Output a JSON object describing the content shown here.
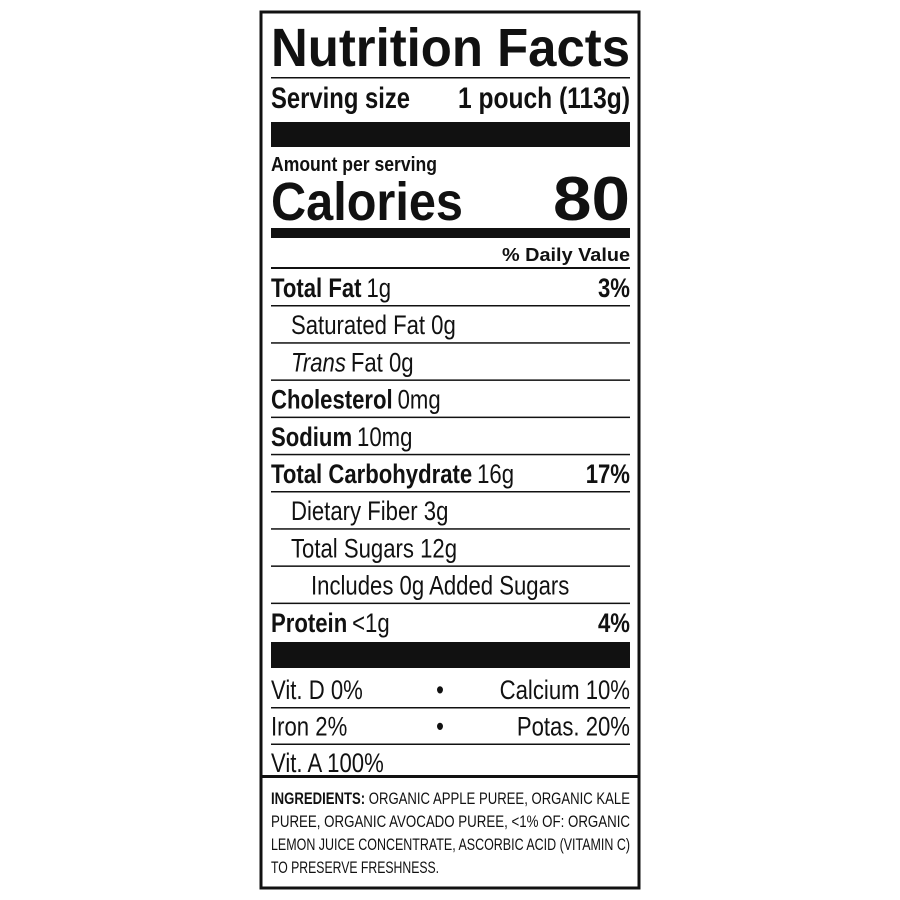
{
  "title": "Nutrition Facts",
  "serving": {
    "label": "Serving size",
    "value": "1 pouch (113g)"
  },
  "amount_per_serving": "Amount per serving",
  "calories": {
    "label": "Calories",
    "value": 80
  },
  "daily_value_header": "% Daily Value",
  "nutrients": [
    {
      "name": "Total Fat",
      "amount": "1g",
      "dv": "3%"
    },
    {
      "name": "Saturated Fat 0g"
    },
    {
      "name_italic": "Trans",
      "name": "Fat 0g"
    },
    {
      "name": "Cholesterol",
      "amount": "0mg"
    },
    {
      "name": "Sodium",
      "amount": "10mg"
    },
    {
      "name": "Total Carbohydrate",
      "amount": "16g",
      "dv": "17%"
    },
    {
      "name": "Dietary Fiber 3g"
    },
    {
      "name": "Total Sugars 12g"
    },
    {
      "name": "Includes 0g Added Sugars"
    },
    {
      "name": "Protein",
      "amount": "<1g",
      "dv": "4%"
    }
  ],
  "separator": "•",
  "vitamins": [
    [
      "Vit. D 0%",
      "Calcium 10%"
    ],
    [
      "Iron 2%",
      "Potas. 20%"
    ],
    [
      "Vit. A 100%"
    ]
  ],
  "ingredients": {
    "label": "INGREDIENTS:",
    "lines": [
      " ORGANIC APPLE PUREE, ORGANIC KALE",
      "PUREE, ORGANIC AVOCADO PUREE, <1% OF: ORGANIC",
      "LEMON JUICE CONCENTRATE, ASCORBIC ACID (VITAMIN C)",
      "TO PRESERVE FRESHNESS."
    ]
  }
}
